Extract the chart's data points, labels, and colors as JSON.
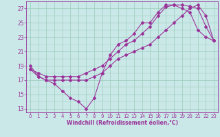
{
  "xlabel": "Windchill (Refroidissement éolien,°C)",
  "bg_color": "#cbe8e8",
  "line_color": "#993399",
  "grid_color": "#99ccbb",
  "xlim": [
    -0.5,
    23.5
  ],
  "ylim": [
    12.5,
    28.0
  ],
  "xticks": [
    0,
    1,
    2,
    3,
    4,
    5,
    6,
    7,
    8,
    9,
    10,
    11,
    12,
    13,
    14,
    15,
    16,
    17,
    18,
    19,
    20,
    21,
    22,
    23
  ],
  "yticks": [
    13,
    15,
    17,
    19,
    21,
    23,
    25,
    27
  ],
  "line1_x": [
    0,
    1,
    2,
    3,
    4,
    5,
    6,
    7,
    8,
    9,
    10,
    11,
    12,
    13,
    14,
    15,
    16,
    17,
    18,
    19,
    20,
    21,
    22,
    23
  ],
  "line1_y": [
    19,
    17.5,
    17,
    16.5,
    15.5,
    14.5,
    14.0,
    13,
    14.5,
    18,
    20.5,
    22,
    22.5,
    23.5,
    25,
    25,
    26.5,
    27.5,
    27.5,
    27,
    26.5,
    24,
    23,
    22.5
  ],
  "line2_x": [
    0,
    1,
    2,
    3,
    4,
    5,
    6,
    7,
    8,
    9,
    10,
    11,
    12,
    13,
    14,
    15,
    16,
    17,
    18,
    19,
    20,
    21,
    22,
    23
  ],
  "line2_y": [
    18.5,
    18.0,
    17.5,
    17.5,
    17.5,
    17.5,
    17.5,
    18.0,
    18.5,
    19,
    20,
    21,
    22,
    22.5,
    23.5,
    24.5,
    26,
    27.2,
    27.5,
    27.5,
    27.3,
    27.0,
    24.5,
    22.5
  ],
  "line3_x": [
    0,
    1,
    2,
    3,
    4,
    5,
    6,
    7,
    8,
    9,
    10,
    11,
    12,
    13,
    14,
    15,
    16,
    17,
    18,
    19,
    20,
    21,
    22,
    23
  ],
  "line3_y": [
    18.5,
    17.5,
    17.0,
    17.0,
    17.0,
    17.0,
    17.0,
    17.0,
    17.5,
    18,
    19,
    20,
    20.5,
    21,
    21.5,
    22,
    23,
    24,
    25,
    26,
    27,
    27.5,
    26,
    22.5
  ]
}
